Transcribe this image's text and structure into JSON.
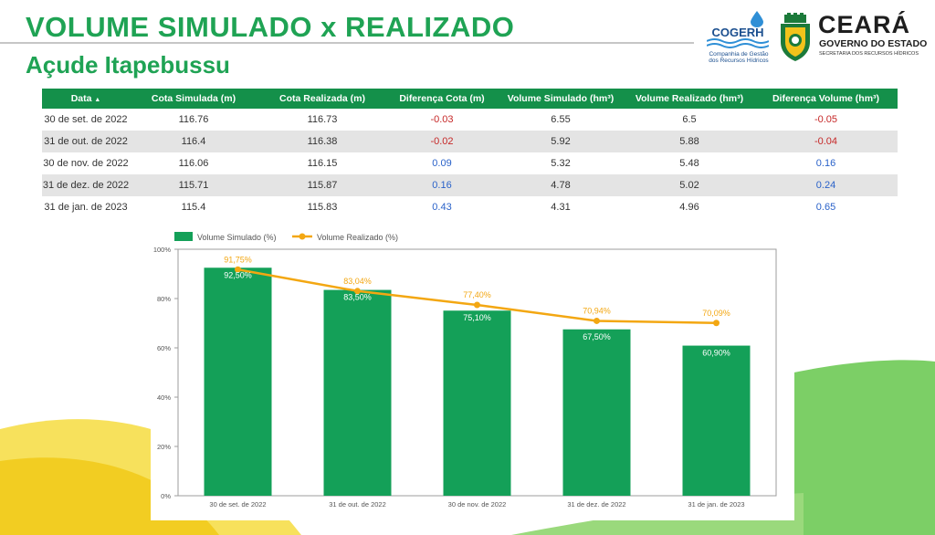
{
  "header": {
    "title": "VOLUME SIMULADO x REALIZADO",
    "subtitle": "Açude Itapebussu"
  },
  "logos": {
    "cogerh_name": "COGERH",
    "cogerh_desc_1": "Companhia de Gestão",
    "cogerh_desc_2": "dos Recursos Hídricos",
    "state_name": "CEARÁ",
    "state_gov": "GOVERNO DO ESTADO",
    "state_sec": "SECRETARIA DOS RECURSOS HÍDRICOS"
  },
  "table": {
    "headers": [
      "Data",
      "Cota Simulada (m)",
      "Cota Realizada (m)",
      "Diferença Cota (m)",
      "Volume Simulado (hm³)",
      "Volume Realizado (hm³)",
      "Diferença Volume (hm³)"
    ],
    "sort_indicator": "▲",
    "rows": [
      [
        "30 de set. de 2022",
        "116.76",
        "116.73",
        "-0.03",
        "6.55",
        "6.5",
        "-0.05"
      ],
      [
        "31 de out. de 2022",
        "116.4",
        "116.38",
        "-0.02",
        "5.92",
        "5.88",
        "-0.04"
      ],
      [
        "30 de nov. de 2022",
        "116.06",
        "116.15",
        "0.09",
        "5.32",
        "5.48",
        "0.16"
      ],
      [
        "31 de dez. de 2022",
        "115.71",
        "115.87",
        "0.16",
        "4.78",
        "5.02",
        "0.24"
      ],
      [
        "31 de jan. de 2023",
        "115.4",
        "115.83",
        "0.43",
        "4.31",
        "4.96",
        "0.65"
      ]
    ]
  },
  "colors": {
    "brand_green": "#1fa354",
    "bar": "#14a058",
    "line": "#f3a712",
    "positive": "#2a62c9",
    "negative": "#c62828"
  },
  "chart_data": {
    "type": "bar",
    "categories": [
      "30 de set. de 2022",
      "31 de out. de 2022",
      "30 de nov. de 2022",
      "31 de dez. de 2022",
      "31 de jan. de 2023"
    ],
    "series": [
      {
        "name": "Volume Simulado (%)",
        "type": "bar",
        "values": [
          92.5,
          83.5,
          75.1,
          67.5,
          60.9
        ],
        "labels": [
          "92,50%",
          "83,50%",
          "75,10%",
          "67,50%",
          "60,90%"
        ]
      },
      {
        "name": "Volume Realizado (%)",
        "type": "line",
        "values": [
          91.75,
          83.04,
          77.4,
          70.94,
          70.09
        ],
        "labels": [
          "91,75%",
          "83,04%",
          "77,40%",
          "70,94%",
          "70,09%"
        ]
      }
    ],
    "ylim": [
      0,
      100
    ],
    "yticks": [
      0,
      20,
      40,
      60,
      80,
      100
    ],
    "ytick_labels": [
      "0%",
      "20%",
      "40%",
      "60%",
      "80%",
      "100%"
    ],
    "legend_position": "top-left",
    "grid": false
  }
}
